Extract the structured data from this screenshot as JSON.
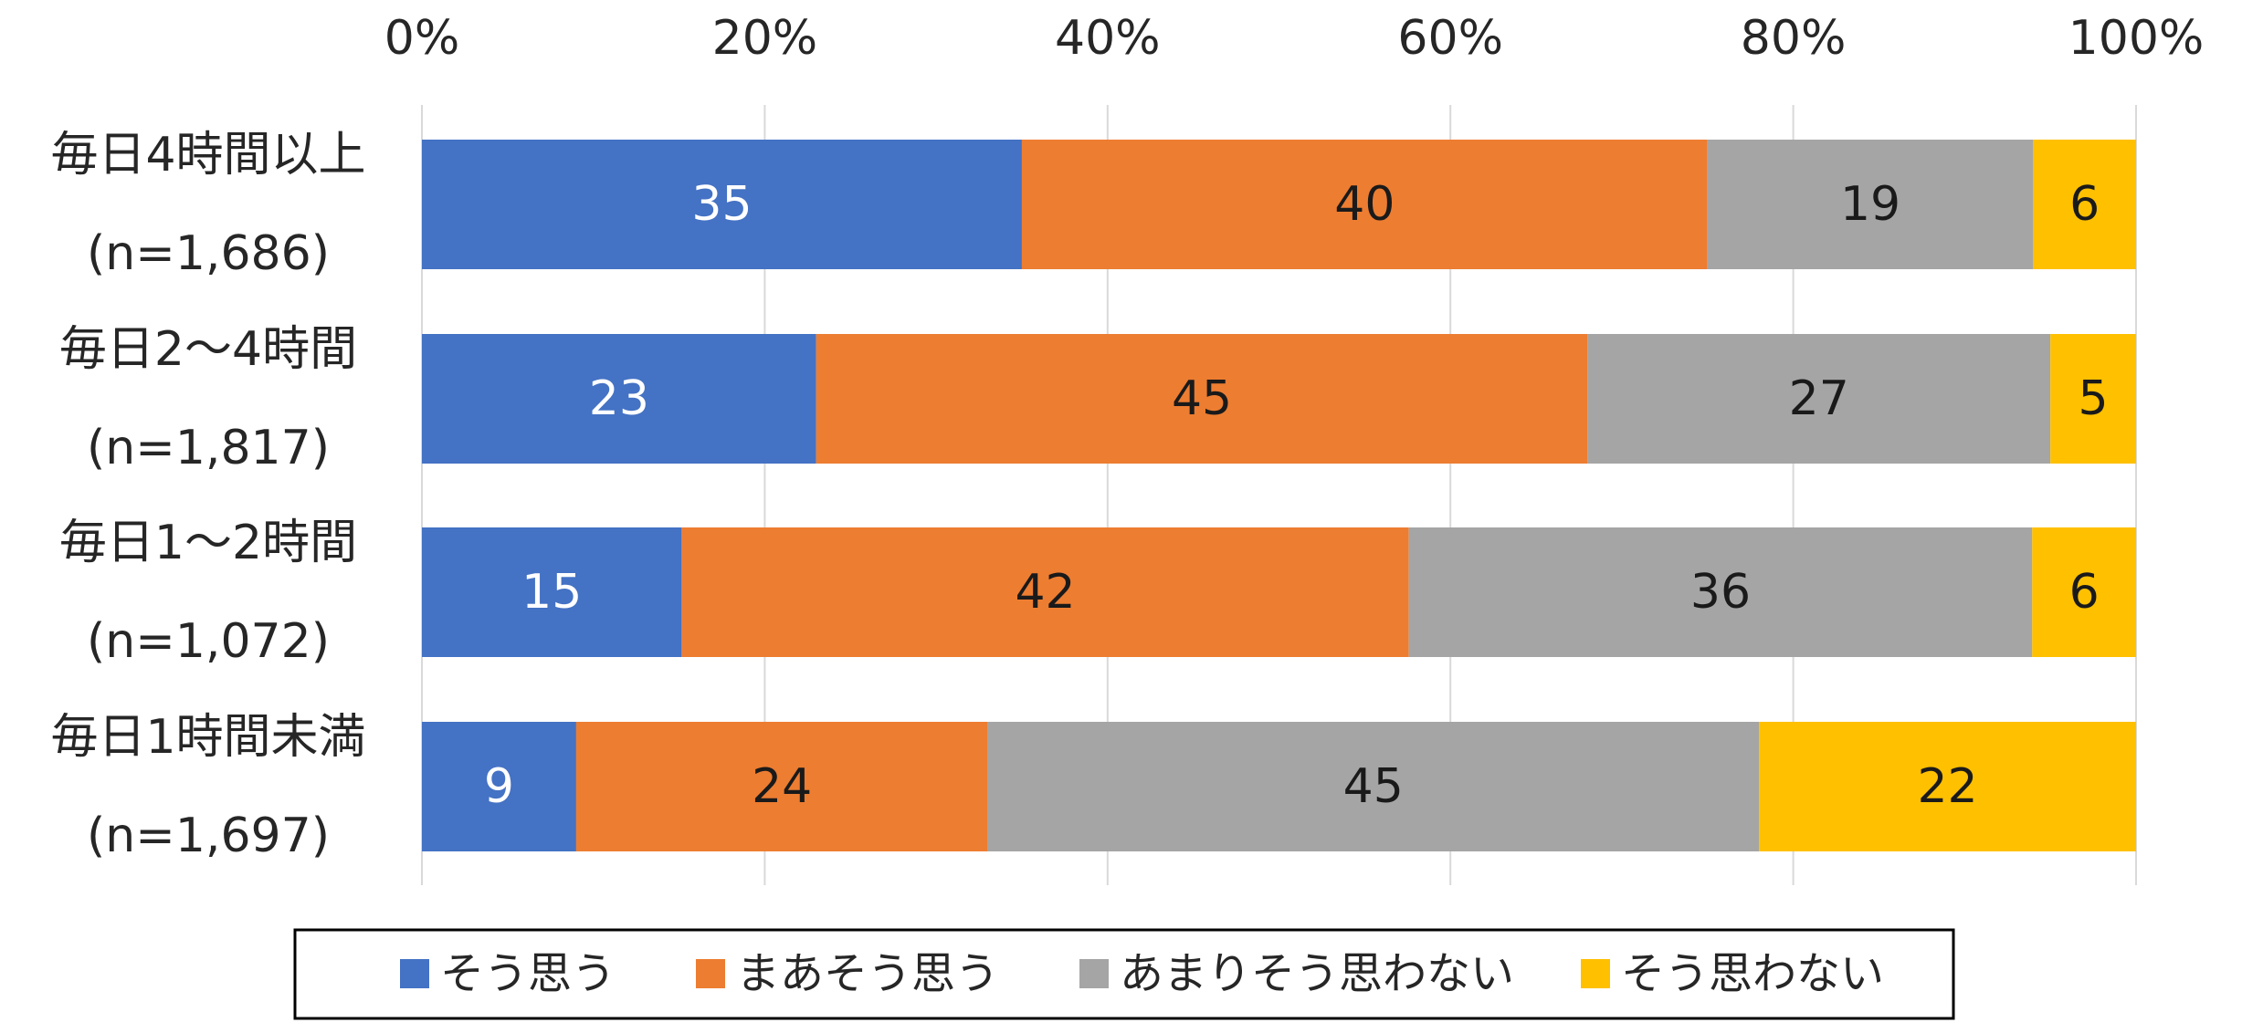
{
  "chart_data": {
    "type": "bar",
    "orientation": "horizontal",
    "stacked": true,
    "percent_axis": true,
    "categories": [
      [
        "毎日4時間以上",
        "(n=1,686)"
      ],
      [
        "毎日2～4時間",
        "(n=1,817)"
      ],
      [
        "毎日1～2時間",
        "(n=1,072)"
      ],
      [
        "毎日1時間未満",
        "(n=1,697)"
      ]
    ],
    "series": [
      {
        "name": "そう思う",
        "color": "#4472C4",
        "label_color": "#FFFFFF",
        "values": [
          35,
          23,
          15,
          9
        ]
      },
      {
        "name": "まあそう思う",
        "color": "#ED7D31",
        "label_color": "#1A1A1A",
        "values": [
          40,
          45,
          42,
          24
        ]
      },
      {
        "name": "あまりそう思わない",
        "color": "#A5A5A5",
        "label_color": "#1A1A1A",
        "values": [
          19,
          27,
          36,
          45
        ]
      },
      {
        "name": "そう思わない",
        "color": "#FFC000",
        "label_color": "#1A1A1A",
        "values": [
          6,
          5,
          6,
          22
        ]
      }
    ],
    "xticks": [
      "0%",
      "20%",
      "40%",
      "60%",
      "80%",
      "100%"
    ],
    "xlim": [
      0,
      100
    ],
    "grid": true,
    "legend_position": "bottom",
    "title": "",
    "xlabel": "",
    "ylabel": ""
  }
}
